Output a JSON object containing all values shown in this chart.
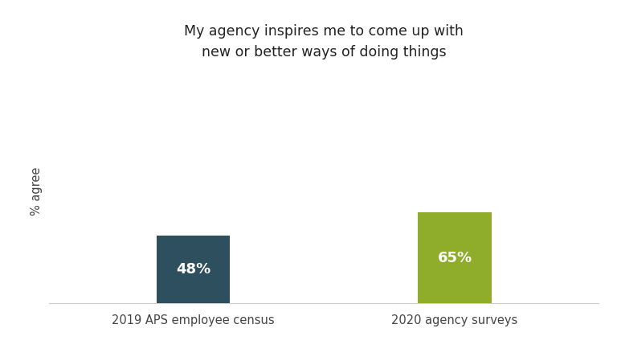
{
  "categories": [
    "2019 APS employee census",
    "2020 agency surveys"
  ],
  "values": [
    48,
    65
  ],
  "bar_colors": [
    "#2d4f5e",
    "#8fad2a"
  ],
  "bar_labels": [
    "48%",
    "65%"
  ],
  "title_line1": "My agency inspires me to come up with",
  "title_line2": "new or better ways of doing things",
  "ylabel": "% agree",
  "ylim": [
    0,
    160
  ],
  "background_color": "#ffffff",
  "title_fontsize": 12.5,
  "label_fontsize": 13,
  "axis_fontsize": 10.5,
  "bar_width": 0.28
}
